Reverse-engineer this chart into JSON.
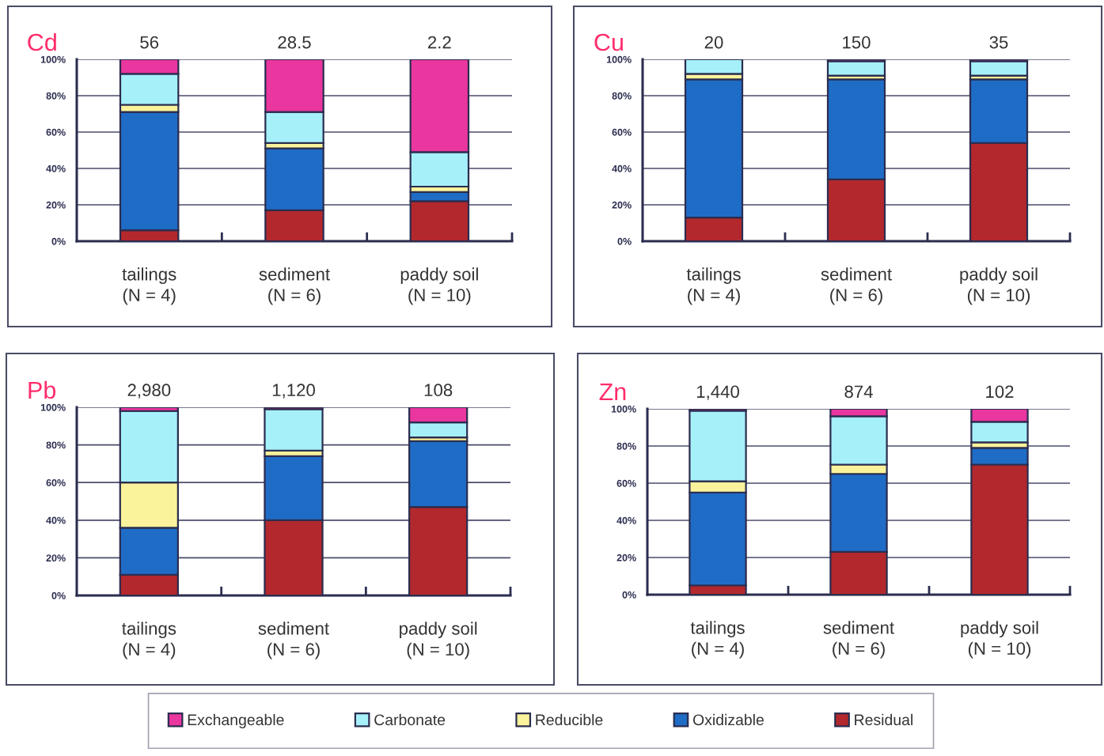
{
  "chart_data": [
    {
      "type": "bar",
      "title": "Cd",
      "stacked": true,
      "categories": [
        "tailings\n(N = 4)",
        "sediment\n(N = 6)",
        "paddy soil\n(N = 10)"
      ],
      "series": [
        {
          "name": "Residual",
          "color": "#b3282d",
          "values": [
            6,
            17,
            22
          ]
        },
        {
          "name": "Oxidizable",
          "color": "#1f6cc6",
          "values": [
            65,
            34,
            5
          ]
        },
        {
          "name": "Reducible",
          "color": "#fbf39b",
          "values": [
            4,
            3,
            3
          ]
        },
        {
          "name": "Carbonate",
          "color": "#a6f0fa",
          "values": [
            17,
            17,
            19
          ]
        },
        {
          "name": "Exchangeable",
          "color": "#ea369f",
          "values": [
            8,
            29,
            51
          ]
        }
      ],
      "annotations": [
        "56",
        "28.5",
        "2.2"
      ],
      "ylim": [
        0,
        100
      ],
      "yticks": [
        {
          "value": 0,
          "label": "0%"
        },
        {
          "value": 20,
          "label": "20%"
        },
        {
          "value": 40,
          "label": "40%"
        },
        {
          "value": 60,
          "label": "60%"
        },
        {
          "value": 80,
          "label": "80%"
        },
        {
          "value": 100,
          "label": "100%"
        }
      ],
      "grid": "y",
      "legend": "bottom"
    },
    {
      "type": "bar",
      "title": "Cu",
      "stacked": true,
      "categories": [
        "tailings\n(N = 4)",
        "sediment\n(N = 6)",
        "paddy soil\n(N = 10)"
      ],
      "series": [
        {
          "color": "#b3282d",
          "values": [
            13,
            34,
            54
          ]
        },
        {
          "color": "#1f6cc6",
          "values": [
            76,
            55,
            35
          ]
        },
        {
          "color": "#fbf39b",
          "values": [
            3,
            2,
            2
          ]
        },
        {
          "color": "#a6f0fa",
          "values": [
            8,
            8,
            8
          ]
        },
        {
          "color": "#ea369f",
          "values": [
            0,
            1,
            1
          ]
        }
      ],
      "annotations": [
        "20",
        "150",
        "35"
      ],
      "ylim": [
        0,
        100
      ],
      "yticks": [
        {
          "value": 0,
          "label": "0%"
        },
        {
          "value": 20,
          "label": "20%"
        },
        {
          "value": 40,
          "label": "40%"
        },
        {
          "value": 60,
          "label": "60%"
        },
        {
          "value": 80,
          "label": "80%"
        },
        {
          "value": 100,
          "label": "100%"
        }
      ],
      "grid": "y"
    },
    {
      "type": "bar",
      "title": "Pb",
      "stacked": true,
      "categories": [
        "tailings\n(N = 4)",
        "sediment\n(N = 6)",
        "paddy soil\n(N = 10)"
      ],
      "series": [
        {
          "color": "#b3282d",
          "values": [
            11,
            40,
            47
          ]
        },
        {
          "color": "#1f6cc6",
          "values": [
            25,
            34,
            35
          ]
        },
        {
          "color": "#fbf39b",
          "values": [
            24,
            3,
            2
          ]
        },
        {
          "color": "#a6f0fa",
          "values": [
            38,
            22,
            8
          ]
        },
        {
          "color": "#ea369f",
          "values": [
            2,
            1,
            8
          ]
        }
      ],
      "annotations": [
        "2,980",
        "1,120",
        "108"
      ],
      "ylim": [
        0,
        100
      ],
      "yticks": [
        {
          "value": 0,
          "label": "0%"
        },
        {
          "value": 20,
          "label": "20%"
        },
        {
          "value": 40,
          "label": "40%"
        },
        {
          "value": 60,
          "label": "60%"
        },
        {
          "value": 80,
          "label": "80%"
        },
        {
          "value": 100,
          "label": "100%"
        }
      ],
      "grid": "y"
    },
    {
      "type": "bar",
      "title": "Zn",
      "stacked": true,
      "categories": [
        "tailings\n(N = 4)",
        "sediment\n(N = 6)",
        "paddy soil\n(N = 10)"
      ],
      "series": [
        {
          "color": "#b3282d",
          "values": [
            5,
            23,
            70
          ]
        },
        {
          "color": "#1f6cc6",
          "values": [
            50,
            42,
            9
          ]
        },
        {
          "color": "#fbf39b",
          "values": [
            6,
            5,
            3
          ]
        },
        {
          "color": "#a6f0fa",
          "values": [
            38,
            26,
            11
          ]
        },
        {
          "color": "#ea369f",
          "values": [
            1,
            4,
            7
          ]
        }
      ],
      "annotations": [
        "1,440",
        "874",
        "102"
      ],
      "ylim": [
        0,
        100
      ],
      "yticks": [
        {
          "value": 0,
          "label": "0%"
        },
        {
          "value": 20,
          "label": "20%"
        },
        {
          "value": 40,
          "label": "40%"
        },
        {
          "value": 60,
          "label": "60%"
        },
        {
          "value": 80,
          "label": "80%"
        },
        {
          "value": 100,
          "label": "100%"
        }
      ],
      "grid": "y"
    }
  ]
}
